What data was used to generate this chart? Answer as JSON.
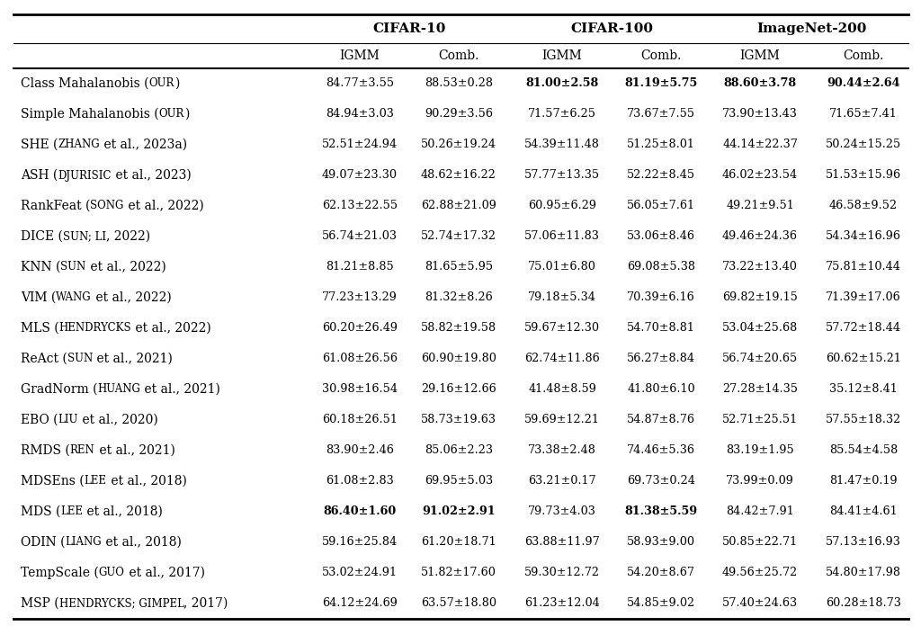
{
  "rows": [
    {
      "name_normal": "Class Mahalanobis (",
      "name_sc": "OUR",
      "name_end": ")",
      "values": [
        "84.77±3.55",
        "88.53±0.28",
        "81.00±2.58",
        "81.19±5.75",
        "88.60±3.78",
        "90.44±2.64"
      ],
      "bold": [
        false,
        false,
        true,
        true,
        true,
        true
      ]
    },
    {
      "name_normal": "Simple Mahalanobis (",
      "name_sc": "OUR",
      "name_end": ")",
      "values": [
        "84.94±3.03",
        "90.29±3.56",
        "71.57±6.25",
        "73.67±7.55",
        "73.90±13.43",
        "71.65±7.41"
      ],
      "bold": [
        false,
        false,
        false,
        false,
        false,
        false
      ]
    },
    {
      "name_normal": "SHE (",
      "name_sc": "ZHANG",
      "name_end": " et al., 2023a)",
      "values": [
        "52.51±24.94",
        "50.26±19.24",
        "54.39±11.48",
        "51.25±8.01",
        "44.14±22.37",
        "50.24±15.25"
      ],
      "bold": [
        false,
        false,
        false,
        false,
        false,
        false
      ]
    },
    {
      "name_normal": "ASH (",
      "name_sc": "DJURISIC",
      "name_end": " et al., 2023)",
      "values": [
        "49.07±23.30",
        "48.62±16.22",
        "57.77±13.35",
        "52.22±8.45",
        "46.02±23.54",
        "51.53±15.96"
      ],
      "bold": [
        false,
        false,
        false,
        false,
        false,
        false
      ]
    },
    {
      "name_normal": "RankFeat (",
      "name_sc": "SONG",
      "name_end": " et al., 2022)",
      "values": [
        "62.13±22.55",
        "62.88±21.09",
        "60.95±6.29",
        "56.05±7.61",
        "49.21±9.51",
        "46.58±9.52"
      ],
      "bold": [
        false,
        false,
        false,
        false,
        false,
        false
      ]
    },
    {
      "name_normal": "DICE (",
      "name_sc": "SUN; LI",
      "name_end": ", 2022)",
      "values": [
        "56.74±21.03",
        "52.74±17.32",
        "57.06±11.83",
        "53.06±8.46",
        "49.46±24.36",
        "54.34±16.96"
      ],
      "bold": [
        false,
        false,
        false,
        false,
        false,
        false
      ]
    },
    {
      "name_normal": "KNN (",
      "name_sc": "SUN",
      "name_end": " et al., 2022)",
      "values": [
        "81.21±8.85",
        "81.65±5.95",
        "75.01±6.80",
        "69.08±5.38",
        "73.22±13.40",
        "75.81±10.44"
      ],
      "bold": [
        false,
        false,
        false,
        false,
        false,
        false
      ]
    },
    {
      "name_normal": "VIM (",
      "name_sc": "WANG",
      "name_end": " et al., 2022)",
      "values": [
        "77.23±13.29",
        "81.32±8.26",
        "79.18±5.34",
        "70.39±6.16",
        "69.82±19.15",
        "71.39±17.06"
      ],
      "bold": [
        false,
        false,
        false,
        false,
        false,
        false
      ]
    },
    {
      "name_normal": "MLS (",
      "name_sc": "HENDRYCKS",
      "name_end": " et al., 2022)",
      "values": [
        "60.20±26.49",
        "58.82±19.58",
        "59.67±12.30",
        "54.70±8.81",
        "53.04±25.68",
        "57.72±18.44"
      ],
      "bold": [
        false,
        false,
        false,
        false,
        false,
        false
      ]
    },
    {
      "name_normal": "ReAct (",
      "name_sc": "SUN",
      "name_end": " et al., 2021)",
      "values": [
        "61.08±26.56",
        "60.90±19.80",
        "62.74±11.86",
        "56.27±8.84",
        "56.74±20.65",
        "60.62±15.21"
      ],
      "bold": [
        false,
        false,
        false,
        false,
        false,
        false
      ]
    },
    {
      "name_normal": "GradNorm (",
      "name_sc": "HUANG",
      "name_end": " et al., 2021)",
      "values": [
        "30.98±16.54",
        "29.16±12.66",
        "41.48±8.59",
        "41.80±6.10",
        "27.28±14.35",
        "35.12±8.41"
      ],
      "bold": [
        false,
        false,
        false,
        false,
        false,
        false
      ]
    },
    {
      "name_normal": "EBO (",
      "name_sc": "LIU",
      "name_end": " et al., 2020)",
      "values": [
        "60.18±26.51",
        "58.73±19.63",
        "59.69±12.21",
        "54.87±8.76",
        "52.71±25.51",
        "57.55±18.32"
      ],
      "bold": [
        false,
        false,
        false,
        false,
        false,
        false
      ]
    },
    {
      "name_normal": "RMDS (",
      "name_sc": "REN",
      "name_end": " et al., 2021)",
      "values": [
        "83.90±2.46",
        "85.06±2.23",
        "73.38±2.48",
        "74.46±5.36",
        "83.19±1.95",
        "85.54±4.58"
      ],
      "bold": [
        false,
        false,
        false,
        false,
        false,
        false
      ]
    },
    {
      "name_normal": "MDSEns (",
      "name_sc": "LEE",
      "name_end": " et al., 2018)",
      "values": [
        "61.08±2.83",
        "69.95±5.03",
        "63.21±0.17",
        "69.73±0.24",
        "73.99±0.09",
        "81.47±0.19"
      ],
      "bold": [
        false,
        false,
        false,
        false,
        false,
        false
      ]
    },
    {
      "name_normal": "MDS (",
      "name_sc": "LEE",
      "name_end": " et al., 2018)",
      "values": [
        "86.40±1.60",
        "91.02±2.91",
        "79.73±4.03",
        "81.38±5.59",
        "84.42±7.91",
        "84.41±4.61"
      ],
      "bold": [
        true,
        true,
        false,
        true,
        false,
        false
      ]
    },
    {
      "name_normal": "ODIN (",
      "name_sc": "LIANG",
      "name_end": " et al., 2018)",
      "values": [
        "59.16±25.84",
        "61.20±18.71",
        "63.88±11.97",
        "58.93±9.00",
        "50.85±22.71",
        "57.13±16.93"
      ],
      "bold": [
        false,
        false,
        false,
        false,
        false,
        false
      ]
    },
    {
      "name_normal": "TempScale (",
      "name_sc": "GUO",
      "name_end": " et al., 2017)",
      "values": [
        "53.02±24.91",
        "51.82±17.60",
        "59.30±12.72",
        "54.20±8.67",
        "49.56±25.72",
        "54.80±17.98"
      ],
      "bold": [
        false,
        false,
        false,
        false,
        false,
        false
      ]
    },
    {
      "name_normal": "MSP (",
      "name_sc": "HENDRYCKS; GIMPEL",
      "name_end": ", 2017)",
      "values": [
        "64.12±24.69",
        "63.57±18.80",
        "61.23±12.04",
        "54.85±9.02",
        "57.40±24.63",
        "60.28±18.73"
      ],
      "bold": [
        false,
        false,
        false,
        false,
        false,
        false
      ]
    }
  ],
  "group_labels": [
    "CIFAR-10",
    "CIFAR-100",
    "ImageNet-200"
  ],
  "sub_labels": [
    "IGMM",
    "Comb.",
    "IGMM",
    "Comb.",
    "IGMM",
    "Comb."
  ],
  "bg_color": "#ffffff",
  "text_color": "#000000",
  "header_fontsize": 11.0,
  "subheader_fontsize": 10.0,
  "data_fontsize": 9.2,
  "name_fontsize": 10.0,
  "name_sc_fontsize": 8.5
}
